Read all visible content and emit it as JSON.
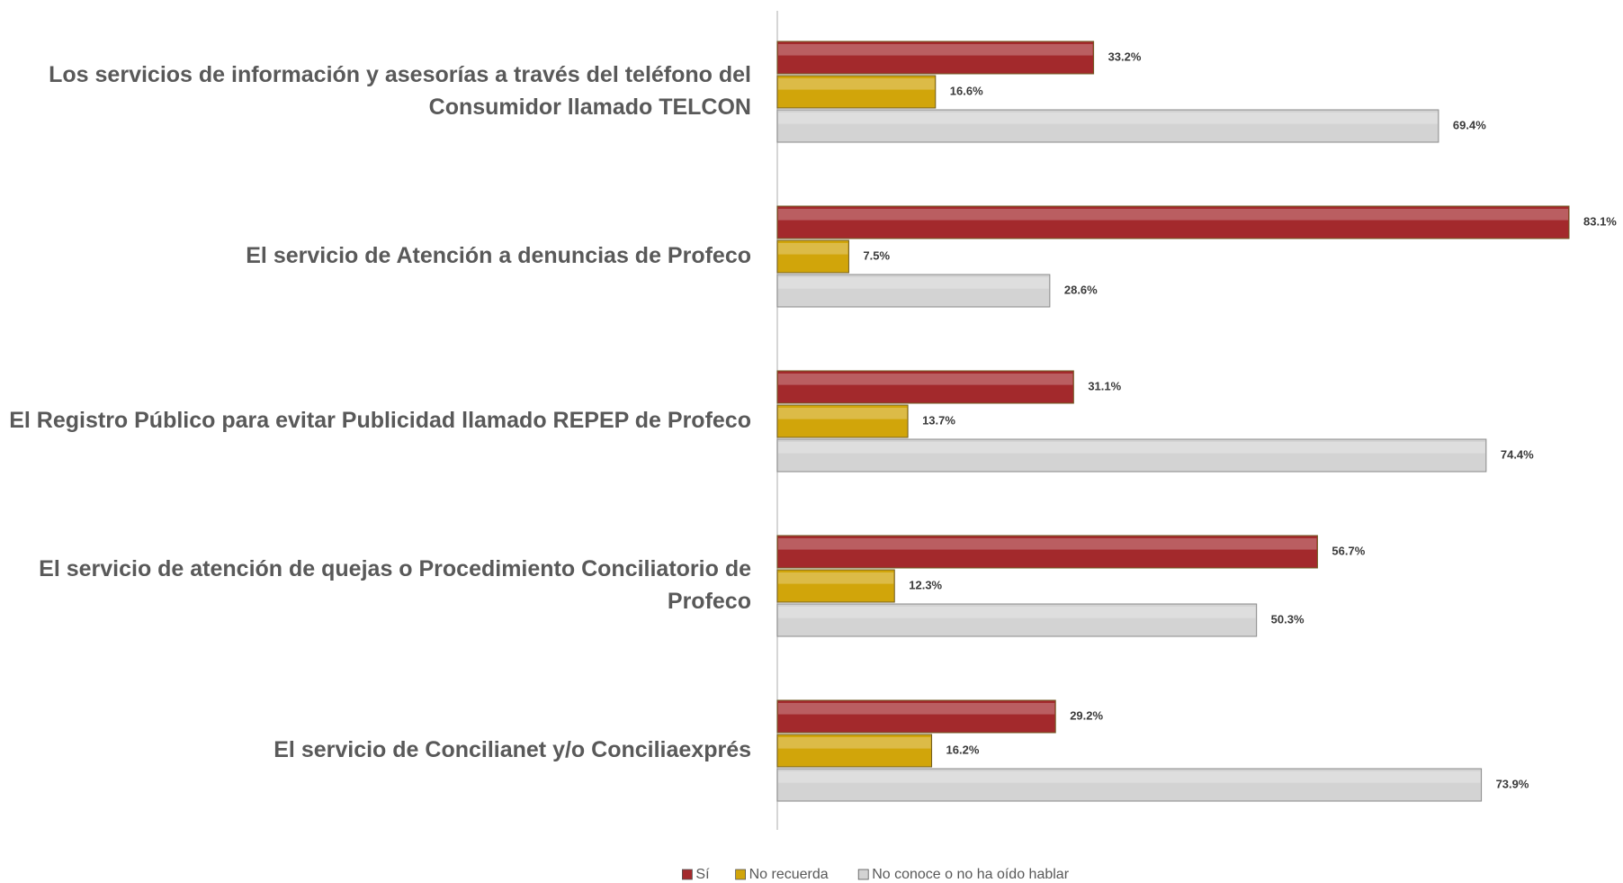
{
  "chart_data": {
    "type": "bar",
    "orientation": "horizontal",
    "categories": [
      "Los servicios de información y asesorías a través del teléfono del Consumidor llamado TELCON",
      "El servicio de Atención a denuncias de Profeco",
      "El Registro Público para evitar Publicidad llamado REPEP de Profeco",
      "El servicio de atención de quejas o Procedimiento Conciliatorio de Profeco",
      "El servicio de Concilianet y/o Conciliaexprés"
    ],
    "series": [
      {
        "name": "Sí",
        "color": "#a3292c",
        "values": [
          33.2,
          83.1,
          31.1,
          56.7,
          29.2
        ],
        "value_labels": [
          "33.2%",
          "83.1%",
          "31.1%",
          "56.7%",
          "29.2%"
        ]
      },
      {
        "name": "No recuerda",
        "color": "#d1a50a",
        "values": [
          16.6,
          7.5,
          13.7,
          12.3,
          16.2
        ],
        "value_labels": [
          "16.6%",
          "7.5%",
          "13.7%",
          "12.3%",
          "16.2%"
        ]
      },
      {
        "name": "No conoce o no ha oído hablar",
        "color": "#d3d3d3",
        "values": [
          69.4,
          28.6,
          74.4,
          50.3,
          73.9
        ],
        "value_labels": [
          "69.4%",
          "28.6%",
          "74.4%",
          "50.3%",
          "73.9%"
        ]
      }
    ],
    "legend": "bottom"
  }
}
